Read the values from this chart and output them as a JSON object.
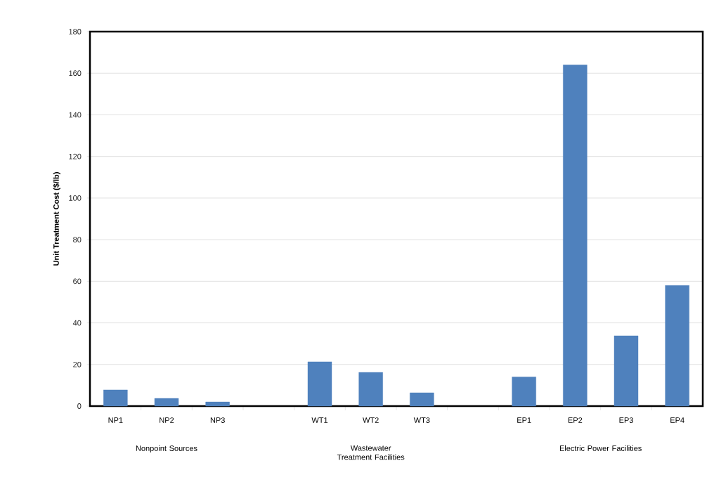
{
  "chart_data": {
    "type": "bar",
    "ylabel": "Unit Treatment Cost ($/lb)",
    "categories": [
      "NP1",
      "NP2",
      "NP3",
      null,
      "WT1",
      "WT2",
      "WT3",
      null,
      "EP1",
      "EP2",
      "EP3",
      "EP4"
    ],
    "values": [
      7.8,
      3.7,
      2,
      null,
      21.3,
      16.2,
      6.4,
      null,
      14,
      164,
      33.8,
      58
    ],
    "color": "#4f81bd",
    "ylim": [
      0,
      180
    ],
    "yticks": [
      0,
      20,
      40,
      60,
      80,
      100,
      120,
      140,
      160,
      180
    ],
    "grid": "y",
    "annotations": [
      "Nonpoint Sources",
      "Wastewater Treatment Facilities",
      "Electric Power Facilities"
    ]
  }
}
